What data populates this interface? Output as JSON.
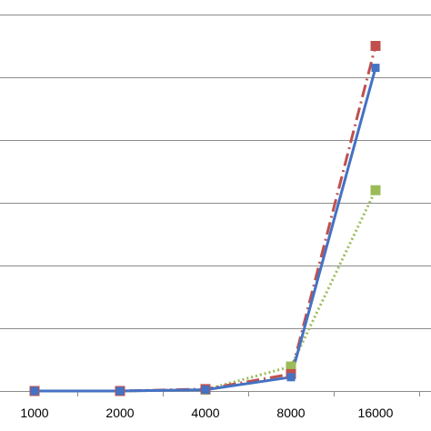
{
  "chart_data": {
    "type": "line",
    "title": "",
    "xlabel": "",
    "ylabel": "",
    "x": [
      "1000",
      "2000",
      "4000",
      "8000",
      "16000"
    ],
    "ylim": [
      0,
      6
    ],
    "yticks": [
      0,
      1,
      2,
      3,
      4,
      5,
      6
    ],
    "grid": "horizontal",
    "series": [
      {
        "color": "#4472C4",
        "line_style": "solid",
        "marker": "square",
        "values": [
          0.0,
          0.0,
          0.02,
          0.22,
          5.15
        ]
      },
      {
        "color": "#C0504D",
        "line_style": "dashdot",
        "marker": "square",
        "values": [
          0.0,
          0.0,
          0.03,
          0.27,
          5.5
        ]
      },
      {
        "color": "#9BBB59",
        "line_style": "dotted",
        "marker": "square",
        "values": [
          0.0,
          0.0,
          0.02,
          0.39,
          3.2
        ]
      }
    ]
  }
}
